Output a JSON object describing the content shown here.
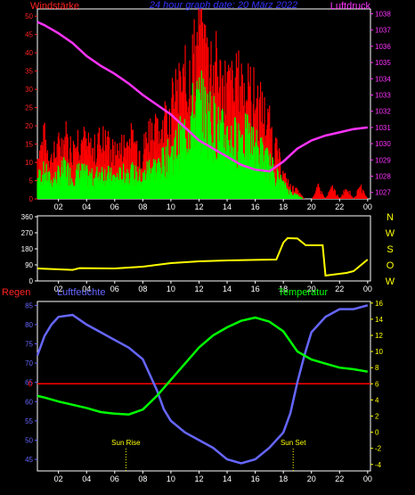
{
  "chart_data": [
    {
      "id": "wind_pressure",
      "type": "bar",
      "title": "24 hour graph date: 20 März 2022",
      "left_label": "Windstärke",
      "right_label": "Luftdruck",
      "colors": {
        "gust": "#ff0000",
        "wind": "#00ff00",
        "pressure": "#ff33ff",
        "frame": "#ffffff",
        "title": "#3333ff",
        "left_label": "#ff2222",
        "right_label": "#ff33ff",
        "left_ticks": "#ff2222",
        "right_ticks": "#ff33ff"
      },
      "x_ticks": [
        "02",
        "04",
        "06",
        "08",
        "10",
        "12",
        "14",
        "16",
        "18",
        "20",
        "22",
        "00"
      ],
      "y_left_ticks": [
        0,
        5,
        10,
        15,
        20,
        25,
        30,
        35,
        40,
        45,
        50
      ],
      "ylim_left": [
        0,
        52
      ],
      "y_right_ticks": [
        1027,
        1028,
        1029,
        1030,
        1031,
        1032,
        1033,
        1034,
        1035,
        1036,
        1037,
        1038
      ],
      "ylim_right": [
        1026.6,
        1038.3
      ],
      "xlim": [
        0.5,
        24.2
      ],
      "gust_series": [
        [
          0.5,
          11
        ],
        [
          1,
          15
        ],
        [
          1.5,
          10
        ],
        [
          2,
          13
        ],
        [
          2.5,
          16
        ],
        [
          3,
          12
        ],
        [
          3.5,
          17
        ],
        [
          4,
          13
        ],
        [
          4.5,
          12
        ],
        [
          5,
          15
        ],
        [
          5.5,
          14
        ],
        [
          6,
          11
        ],
        [
          6.5,
          13
        ],
        [
          7,
          15
        ],
        [
          7.5,
          14
        ],
        [
          8,
          12
        ],
        [
          8.5,
          18
        ],
        [
          9,
          16
        ],
        [
          9.5,
          20
        ],
        [
          10,
          23
        ],
        [
          10.5,
          26
        ],
        [
          11,
          29
        ],
        [
          11.5,
          34
        ],
        [
          12,
          40
        ],
        [
          12.5,
          37
        ],
        [
          13,
          34
        ],
        [
          13.5,
          30
        ],
        [
          14,
          28
        ],
        [
          14.5,
          27
        ],
        [
          15,
          30
        ],
        [
          15.5,
          27
        ],
        [
          16,
          25
        ],
        [
          16.5,
          22
        ],
        [
          17,
          18
        ],
        [
          17.5,
          12
        ],
        [
          18,
          6
        ],
        [
          18.5,
          3
        ],
        [
          19,
          2
        ],
        [
          19.5,
          0
        ],
        [
          20,
          0
        ],
        [
          20.5,
          3
        ],
        [
          21,
          0
        ],
        [
          21.5,
          3
        ],
        [
          22,
          0
        ],
        [
          22.5,
          3
        ],
        [
          23,
          0
        ],
        [
          23.5,
          3
        ],
        [
          24,
          0
        ]
      ],
      "wind_series": [
        [
          0.5,
          6
        ],
        [
          1,
          8
        ],
        [
          1.5,
          5
        ],
        [
          2,
          7
        ],
        [
          2.5,
          9
        ],
        [
          3,
          6
        ],
        [
          3.5,
          8
        ],
        [
          4,
          7
        ],
        [
          4.5,
          6
        ],
        [
          5,
          8
        ],
        [
          5.5,
          7
        ],
        [
          6,
          6
        ],
        [
          6.5,
          7
        ],
        [
          7,
          8
        ],
        [
          7.5,
          7
        ],
        [
          8,
          6
        ],
        [
          8.5,
          10
        ],
        [
          9,
          9
        ],
        [
          9.5,
          11
        ],
        [
          10,
          13
        ],
        [
          10.5,
          16
        ],
        [
          11,
          19
        ],
        [
          11.5,
          24
        ],
        [
          12,
          27
        ],
        [
          12.5,
          25
        ],
        [
          13,
          22
        ],
        [
          13.5,
          19
        ],
        [
          14,
          18
        ],
        [
          14.5,
          17
        ],
        [
          15,
          19
        ],
        [
          15.5,
          17
        ],
        [
          16,
          15
        ],
        [
          16.5,
          13
        ],
        [
          17,
          10
        ],
        [
          17.5,
          7
        ],
        [
          18,
          4
        ],
        [
          18.5,
          2
        ],
        [
          19,
          1
        ],
        [
          19.5,
          0
        ],
        [
          20,
          0
        ],
        [
          21,
          0
        ],
        [
          22,
          0
        ],
        [
          23,
          0
        ],
        [
          24,
          0
        ]
      ],
      "pressure_series": [
        [
          0.5,
          1037.5
        ],
        [
          1,
          1037.3
        ],
        [
          2,
          1036.8
        ],
        [
          3,
          1036.2
        ],
        [
          4,
          1035.4
        ],
        [
          5,
          1034.8
        ],
        [
          6,
          1034.3
        ],
        [
          7,
          1033.7
        ],
        [
          8,
          1033.0
        ],
        [
          9,
          1032.4
        ],
        [
          10,
          1031.8
        ],
        [
          11,
          1031.0
        ],
        [
          12,
          1030.2
        ],
        [
          13,
          1029.7
        ],
        [
          14,
          1029.2
        ],
        [
          15,
          1028.7
        ],
        [
          16,
          1028.4
        ],
        [
          17,
          1028.3
        ],
        [
          18,
          1028.9
        ],
        [
          19,
          1029.7
        ],
        [
          20,
          1030.2
        ],
        [
          21,
          1030.5
        ],
        [
          22,
          1030.7
        ],
        [
          23,
          1030.9
        ],
        [
          24,
          1031.0
        ]
      ]
    },
    {
      "id": "wind_direction",
      "type": "line",
      "colors": {
        "line": "#ffff00",
        "frame": "#ffffff",
        "left_ticks": "#ffffff",
        "right_ticks": "#ffff00"
      },
      "x_ticks": [
        "02",
        "04",
        "06",
        "08",
        "10",
        "12",
        "14",
        "16",
        "18",
        "20",
        "22",
        "00"
      ],
      "y_left_ticks": [
        0,
        90,
        180,
        270,
        360
      ],
      "ylim": [
        0,
        365
      ],
      "y_right_ticks": [
        "W",
        "O",
        "S",
        "W",
        "N"
      ],
      "xlim": [
        0.5,
        24.2
      ],
      "series": [
        [
          0.5,
          70
        ],
        [
          3,
          62
        ],
        [
          3.5,
          72
        ],
        [
          6,
          70
        ],
        [
          8,
          80
        ],
        [
          10,
          100
        ],
        [
          12,
          110
        ],
        [
          14,
          115
        ],
        [
          16,
          118
        ],
        [
          17.5,
          120
        ],
        [
          18,
          215
        ],
        [
          18.3,
          240
        ],
        [
          19,
          238
        ],
        [
          19.6,
          200
        ],
        [
          20.8,
          200
        ],
        [
          21,
          30
        ],
        [
          22.5,
          45
        ],
        [
          23,
          55
        ],
        [
          24,
          120
        ]
      ]
    },
    {
      "id": "humidity_temp",
      "type": "line",
      "left_label": "Regen",
      "mid_label": "Luftfeuchte",
      "right_label": "Temperatur",
      "colors": {
        "humidity": "#6666ff",
        "temperature": "#00ff00",
        "rain": "#ff0000",
        "frame": "#ffffff",
        "left_label": "#ff2222",
        "mid_label": "#6666ff",
        "right_label": "#00ff00",
        "left_ticks": "#6666ff",
        "right_ticks": "#ffff00",
        "annotation": "#ffff00"
      },
      "x_ticks": [
        "02",
        "04",
        "06",
        "08",
        "10",
        "12",
        "14",
        "16",
        "18",
        "20",
        "22",
        "00"
      ],
      "y_left_ticks": [
        45,
        50,
        55,
        60,
        65,
        70,
        75,
        80,
        85
      ],
      "ylim_left": [
        42,
        86
      ],
      "y_right_ticks": [
        -4,
        -2,
        0,
        2,
        4,
        6,
        8,
        10,
        12,
        14,
        16
      ],
      "ylim_right": [
        -4.8,
        16.2
      ],
      "xlim": [
        0.5,
        24.2
      ],
      "rain_marker_label": "0",
      "rain_value": 0,
      "annotations": [
        {
          "label": "Sun Rise",
          "x": 6.8
        },
        {
          "label": "Sun Set",
          "x": 18.7
        }
      ],
      "humidity_series": [
        [
          0.5,
          72
        ],
        [
          1,
          77
        ],
        [
          1.5,
          80
        ],
        [
          2,
          82
        ],
        [
          3,
          82.5
        ],
        [
          4,
          80
        ],
        [
          5,
          78
        ],
        [
          6,
          76
        ],
        [
          7,
          74
        ],
        [
          8,
          71
        ],
        [
          8.5,
          67
        ],
        [
          9,
          63
        ],
        [
          9.5,
          58
        ],
        [
          10,
          55
        ],
        [
          11,
          52
        ],
        [
          12,
          50
        ],
        [
          13,
          48
        ],
        [
          14,
          45
        ],
        [
          15,
          44
        ],
        [
          16,
          45
        ],
        [
          17,
          48
        ],
        [
          18,
          52
        ],
        [
          18.5,
          57
        ],
        [
          19,
          65
        ],
        [
          19.5,
          72
        ],
        [
          20,
          78
        ],
        [
          21,
          82
        ],
        [
          22,
          84
        ],
        [
          23,
          84
        ],
        [
          24,
          85
        ]
      ],
      "temperature_series": [
        [
          0.5,
          4.5
        ],
        [
          1,
          4.3
        ],
        [
          2,
          3.8
        ],
        [
          3,
          3.4
        ],
        [
          4,
          3.0
        ],
        [
          5,
          2.5
        ],
        [
          6,
          2.3
        ],
        [
          7,
          2.2
        ],
        [
          8,
          2.8
        ],
        [
          9,
          4.5
        ],
        [
          10,
          6.5
        ],
        [
          11,
          8.5
        ],
        [
          12,
          10.5
        ],
        [
          13,
          12
        ],
        [
          14,
          13
        ],
        [
          15,
          13.8
        ],
        [
          16,
          14.2
        ],
        [
          17,
          13.7
        ],
        [
          18,
          12.5
        ],
        [
          19,
          10
        ],
        [
          20,
          9
        ],
        [
          21,
          8.5
        ],
        [
          22,
          8
        ],
        [
          23,
          7.8
        ],
        [
          24,
          7.5
        ]
      ]
    }
  ]
}
